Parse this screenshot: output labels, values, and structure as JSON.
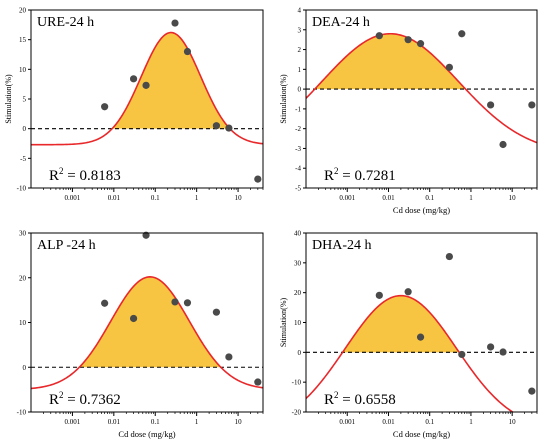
{
  "chart_data": [
    {
      "type": "scatter",
      "title": "URE-24 h",
      "r2_label": "R",
      "r2_sup": "2",
      "r2_value": " = 0.8183",
      "xlabel": "",
      "ylabel": "Stimulation(%)",
      "x_scale": "log",
      "xlim": [
        0.0001,
        40
      ],
      "x_ticks": [
        0.001,
        0.01,
        0.1,
        1,
        10
      ],
      "x_tick_labels": [
        "0.001",
        "0.01",
        "0.1",
        "1",
        "10"
      ],
      "ylim": [
        -10,
        20
      ],
      "y_ticks": [
        -10,
        -5,
        0,
        5,
        10,
        15,
        20
      ],
      "y_tick_labels": [
        "-10",
        "-5",
        "0",
        "5",
        "10",
        "15",
        "20"
      ],
      "points": [
        {
          "x": 0.006,
          "y": 3.7
        },
        {
          "x": 0.03,
          "y": 8.4
        },
        {
          "x": 0.06,
          "y": 7.3
        },
        {
          "x": 0.3,
          "y": 17.8
        },
        {
          "x": 0.6,
          "y": 13.0
        },
        {
          "x": 3.0,
          "y": 0.5
        },
        {
          "x": 6.0,
          "y": 0.1
        },
        {
          "x": 30.0,
          "y": -8.5
        }
      ],
      "fit": {
        "baseline": -2.7,
        "amplitude": 18.9,
        "center_x": 0.24,
        "width_decades": 0.72
      },
      "fill_color": "#f8c542",
      "curve_color": "#e8282b",
      "point_color": "#4a4a4a",
      "grid": false
    },
    {
      "type": "scatter",
      "title": "DEA-24 h",
      "r2_label": "R",
      "r2_sup": "2",
      "r2_value": " = 0.7281",
      "xlabel": "Cd dose (mg/kg)",
      "ylabel": "Stimulation(%)",
      "x_scale": "log",
      "xlim": [
        0.0001,
        40
      ],
      "x_ticks": [
        0.001,
        0.01,
        0.1,
        1,
        10
      ],
      "x_tick_labels": [
        "0.001",
        "0.01",
        "0.1",
        "1",
        "10"
      ],
      "ylim": [
        -5,
        4
      ],
      "y_ticks": [
        -5,
        -4,
        -3,
        -2,
        -1,
        0,
        1,
        2,
        3,
        4
      ],
      "y_tick_labels": [
        "-5",
        "-4",
        "-3",
        "-2",
        "-1",
        "0",
        "1",
        "2",
        "3",
        "4"
      ],
      "points": [
        {
          "x": 0.006,
          "y": 2.7
        },
        {
          "x": 0.03,
          "y": 2.5
        },
        {
          "x": 0.06,
          "y": 2.3
        },
        {
          "x": 0.3,
          "y": 1.1
        },
        {
          "x": 0.6,
          "y": 2.8
        },
        {
          "x": 3.0,
          "y": -0.8
        },
        {
          "x": 6.0,
          "y": -2.8
        },
        {
          "x": 30.0,
          "y": -0.8
        }
      ],
      "fit": {
        "baseline": -3.3,
        "amplitude": 6.1,
        "center_x": 0.011,
        "width_decades": 1.65
      },
      "fill_color": "#f8c542",
      "curve_color": "#e8282b",
      "point_color": "#4a4a4a",
      "grid": false
    },
    {
      "type": "scatter",
      "title": "ALP -24 h",
      "r2_label": "R",
      "r2_sup": "2",
      "r2_value": " = 0.7362",
      "xlabel": "Cd dose (mg/kg)",
      "ylabel": "",
      "x_scale": "log",
      "xlim": [
        0.0001,
        40
      ],
      "x_ticks": [
        0.001,
        0.01,
        0.1,
        1,
        10
      ],
      "x_tick_labels": [
        "0.001",
        "0.01",
        "0.1",
        "1",
        "10"
      ],
      "ylim": [
        -10,
        30
      ],
      "y_ticks": [
        -10,
        0,
        10,
        20,
        30
      ],
      "y_tick_labels": [
        "-10",
        "0",
        "10",
        "20",
        "30"
      ],
      "points": [
        {
          "x": 0.006,
          "y": 14.3
        },
        {
          "x": 0.03,
          "y": 10.9
        },
        {
          "x": 0.06,
          "y": 29.5
        },
        {
          "x": 0.3,
          "y": 14.6
        },
        {
          "x": 0.6,
          "y": 14.4
        },
        {
          "x": 3.0,
          "y": 12.3
        },
        {
          "x": 6.0,
          "y": 2.3
        },
        {
          "x": 30.0,
          "y": -3.3
        }
      ],
      "fit": {
        "baseline": -5.0,
        "amplitude": 25.2,
        "center_x": 0.075,
        "width_decades": 0.95
      },
      "fill_color": "#f8c542",
      "curve_color": "#e8282b",
      "point_color": "#4a4a4a",
      "grid": false
    },
    {
      "type": "scatter",
      "title": "DHA-24 h",
      "r2_label": "R",
      "r2_sup": "2",
      "r2_value": " = 0.6558",
      "xlabel": "Cd dose (mg/kg)",
      "ylabel": "Stimulation(%)",
      "x_scale": "log",
      "xlim": [
        0.0001,
        40
      ],
      "x_ticks": [
        0.001,
        0.01,
        0.1,
        1,
        10
      ],
      "x_tick_labels": [
        "0.001",
        "0.01",
        "0.1",
        "1",
        "10"
      ],
      "ylim": [
        -20,
        40
      ],
      "y_ticks": [
        -20,
        -10,
        0,
        10,
        20,
        30,
        40
      ],
      "y_tick_labels": [
        "-20",
        "-10",
        "0",
        "10",
        "20",
        "30",
        "40"
      ],
      "points": [
        {
          "x": 0.006,
          "y": 19.1
        },
        {
          "x": 0.03,
          "y": 20.3
        },
        {
          "x": 0.06,
          "y": 5.1
        },
        {
          "x": 0.3,
          "y": 32.1
        },
        {
          "x": 0.6,
          "y": -0.7
        },
        {
          "x": 3.0,
          "y": 1.8
        },
        {
          "x": 6.0,
          "y": 0.1
        },
        {
          "x": 30.0,
          "y": -13.0
        }
      ],
      "fit": {
        "baseline": -26.0,
        "amplitude": 45.0,
        "center_x": 0.02,
        "width_decades": 1.35
      },
      "fill_color": "#f8c542",
      "curve_color": "#e8282b",
      "point_color": "#4a4a4a",
      "grid": false
    }
  ]
}
